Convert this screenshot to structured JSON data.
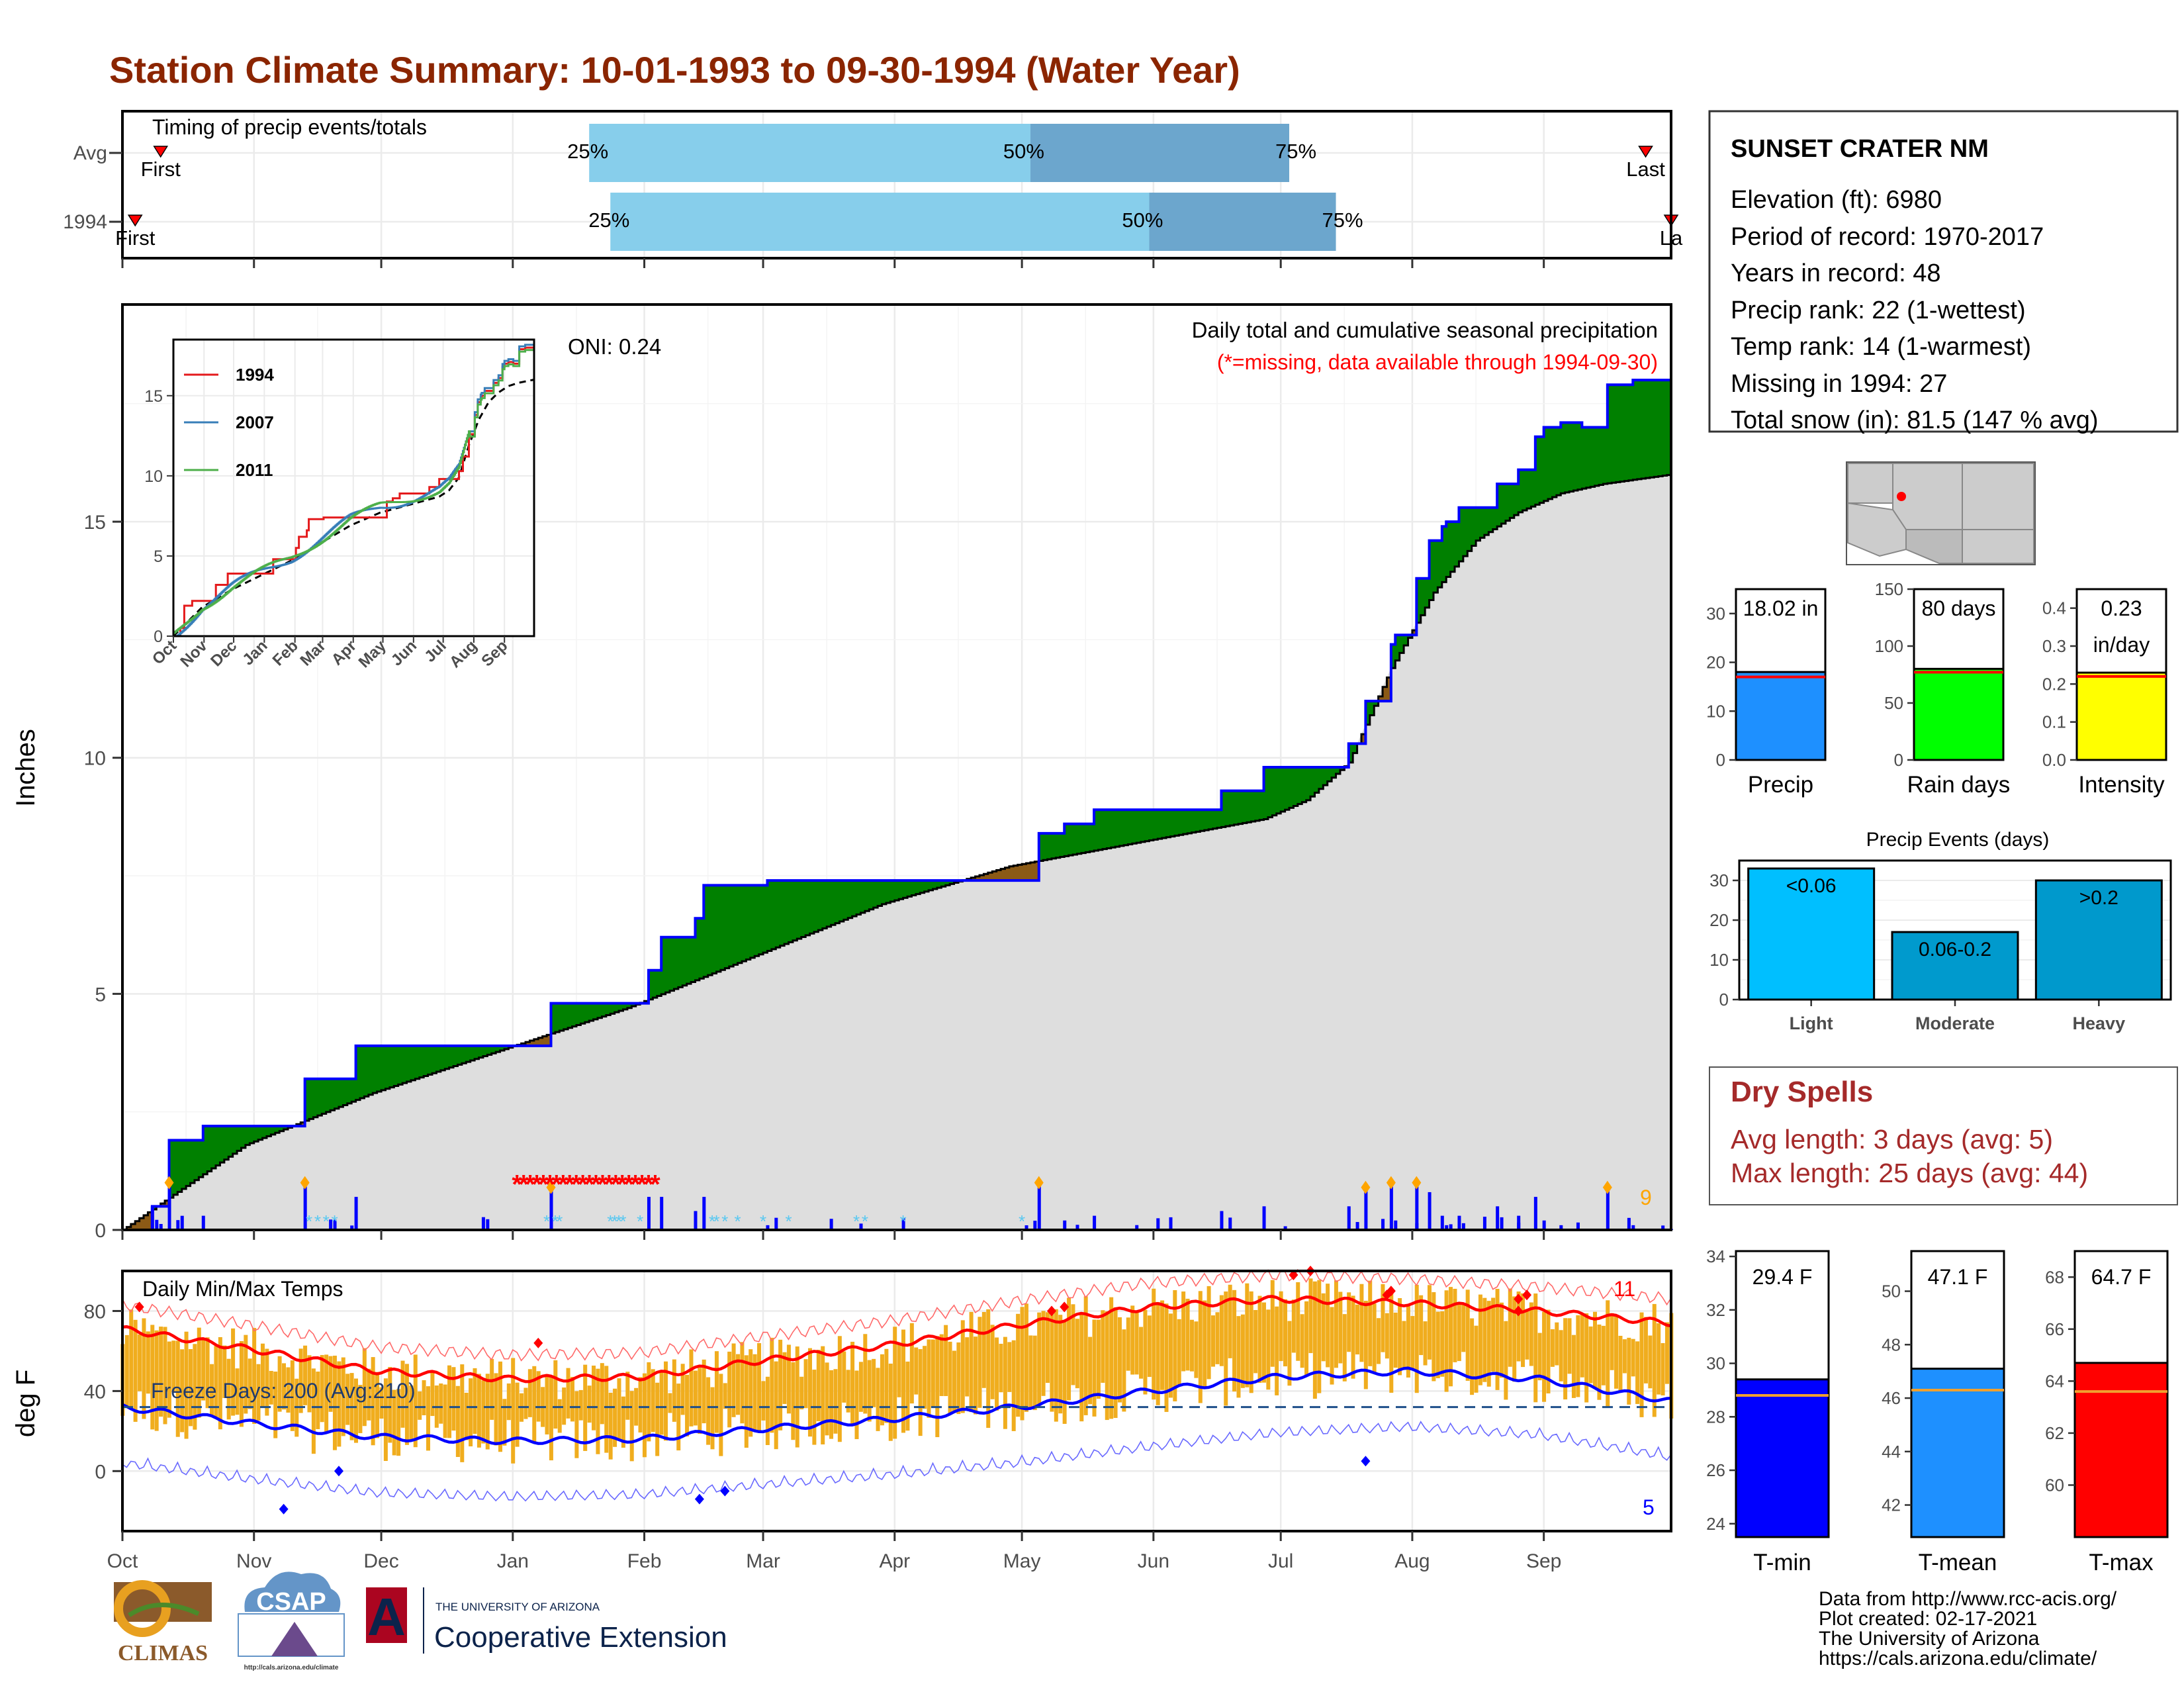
{
  "title": "Station Climate Summary: 10-01-1993 to 09-30-1994 (Water Year)",
  "colors": {
    "title": "#8b2500",
    "green": "#008000",
    "brown": "#8b5a16",
    "grey_fill": "#dedede",
    "blue": "#0000ff",
    "light_blue": "#87ceeb",
    "mid_blue": "#6ca6cd",
    "orange_bar": "#f0ad1e",
    "red": "#ff0000",
    "dry_red": "#a52a2a",
    "precip_light": "#00bfff",
    "precip_moderate": "#009acd",
    "precip_heavy": "#0099cc"
  },
  "timing": {
    "title": "Timing of precip events/totals",
    "rows": [
      {
        "label": "Avg",
        "first": "First",
        "last": "Last",
        "q25": "25%",
        "q50": "50%",
        "q75": "75%",
        "d_first": 10,
        "d_last": 360,
        "d25": 111,
        "d50": 215,
        "d75": 276
      },
      {
        "label": "1994",
        "first": "First",
        "last": "La",
        "q25": "25%",
        "q50": "50%",
        "q75": "75%",
        "d_first": 4,
        "d_last": 366,
        "d25": 116,
        "d50": 243,
        "d75": 287
      }
    ]
  },
  "precip_chart": {
    "ylabel": "Inches",
    "title": "Daily total and cumulative seasonal precipitation",
    "missing_note": "(*=missing, data available through 1994-09-30)",
    "oni": "ONI: 0.24",
    "big_count": "9",
    "yticks": [
      "0",
      "5",
      "10",
      "15"
    ],
    "ylim": [
      0,
      19.6
    ],
    "months": [
      "Oct",
      "Nov",
      "Dec",
      "Jan",
      "Feb",
      "Mar",
      "Apr",
      "May",
      "Jun",
      "Jul",
      "Aug",
      "Sep"
    ]
  },
  "inset": {
    "yticks": [
      "0",
      "5",
      "10",
      "15"
    ],
    "months": [
      "Oct",
      "Nov",
      "Dec",
      "Jan",
      "Feb",
      "Mar",
      "Apr",
      "May",
      "Jun",
      "Jul",
      "Aug",
      "Sep"
    ],
    "legend": [
      "1994",
      "2007",
      "2011"
    ],
    "legend_colors": [
      "#e41a1c",
      "#377eb8",
      "#4daf4a"
    ]
  },
  "temp_chart": {
    "title": "Daily Min/Max Temps",
    "ylabel": "deg F",
    "freeze": "Freeze Days: 200 (Avg:210)",
    "count_hot": "11",
    "count_cold": "5",
    "yticks": [
      "0",
      "40",
      "80"
    ],
    "ylim": [
      -30,
      100
    ],
    "months": [
      "Oct",
      "Nov",
      "Dec",
      "Jan",
      "Feb",
      "Mar",
      "Apr",
      "May",
      "Jun",
      "Jul",
      "Aug",
      "Sep"
    ]
  },
  "station": {
    "name": "SUNSET CRATER NM",
    "lines": [
      "Elevation (ft): 6980",
      "Period of record: 1970-2017",
      "Years in record: 48",
      "Precip rank: 22 (1-wettest)",
      "Temp rank: 14 (1-warmest)",
      "Missing in 1994: 27",
      "Total snow (in): 81.5 (147 % avg)"
    ]
  },
  "mini_bars": [
    {
      "label": "Precip",
      "value_text": "18.02 in",
      "value": 18.02,
      "avg": 17.0,
      "ylim": [
        0,
        35
      ],
      "ticks": [
        "0",
        "10",
        "20",
        "30"
      ],
      "tickv": [
        0,
        10,
        20,
        30
      ],
      "color": "#1e90ff"
    },
    {
      "label": "Rain days",
      "value_text": "80 days",
      "value": 80,
      "avg": 77,
      "ylim": [
        0,
        150
      ],
      "ticks": [
        "0",
        "50",
        "100",
        "150"
      ],
      "tickv": [
        0,
        50,
        100,
        150
      ],
      "color": "#00ff00"
    },
    {
      "label": "Intensity",
      "value_text": "0.23",
      "value_text2": "in/day",
      "value": 0.23,
      "avg": 0.22,
      "ylim": [
        0,
        0.45
      ],
      "ticks": [
        "0.0",
        "0.1",
        "0.2",
        "0.3",
        "0.4"
      ],
      "tickv": [
        0,
        0.1,
        0.2,
        0.3,
        0.4
      ],
      "color": "#ffff00"
    }
  ],
  "precip_events": {
    "title": "Precip Events (days)",
    "categories": [
      "Light",
      "Moderate",
      "Heavy"
    ],
    "bar_labels": [
      "<0.06",
      "0.06-0.2",
      ">0.2"
    ],
    "values": [
      33,
      17,
      30
    ],
    "yticks": [
      "0",
      "10",
      "20",
      "30"
    ],
    "ylim": [
      0,
      35
    ]
  },
  "dry_spells": {
    "title": "Dry Spells",
    "avg": "Avg length: 3 days (avg: 5)",
    "max": "Max length: 25 days (avg: 44)"
  },
  "temp_bars": [
    {
      "label": "T-min",
      "value_text": "29.4 F",
      "value": 29.4,
      "avg": 28.8,
      "ylim": [
        23.5,
        34.2
      ],
      "ticks": [
        "24",
        "26",
        "28",
        "30",
        "32",
        "34"
      ],
      "tickv": [
        24,
        26,
        28,
        30,
        32,
        34
      ],
      "color": "#0000ff"
    },
    {
      "label": "T-mean",
      "value_text": "47.1 F",
      "value": 47.1,
      "avg": 46.3,
      "ylim": [
        40.8,
        51.5
      ],
      "ticks": [
        "42",
        "44",
        "46",
        "48",
        "50"
      ],
      "tickv": [
        42,
        44,
        46,
        48,
        50
      ],
      "color": "#1e90ff"
    },
    {
      "label": "T-max",
      "value_text": "64.7 F",
      "value": 64.7,
      "avg": 63.6,
      "ylim": [
        58.0,
        69.0
      ],
      "ticks": [
        "60",
        "62",
        "64",
        "66",
        "68"
      ],
      "tickv": [
        60,
        62,
        64,
        66,
        68
      ],
      "color": "#ff0000"
    }
  ],
  "footer": {
    "credits": [
      "Data from http://www.rcc-acis.org/",
      "Plot created: 02-17-2021",
      "The University of Arizona",
      "https://cals.arizona.edu/climate/"
    ],
    "climas": "CLIMAS",
    "csap": "CSAP",
    "csap_url": "http://cals.arizona.edu/climate",
    "ua_small": "THE UNIVERSITY OF ARIZONA",
    "coop": "Cooperative Extension"
  },
  "chart_data": [
    {
      "type": "area",
      "title": "Daily total and cumulative seasonal precipitation",
      "ylabel": "Inches",
      "x_unit": "day of water year (1 = Oct 1, 1993)",
      "ylim": [
        0,
        19.6
      ],
      "series": [
        {
          "name": "cumulative precip 1994",
          "x": [
            1,
            8,
            12,
            20,
            44,
            56,
            77,
            88,
            102,
            125,
            128,
            136,
            138,
            153,
            163,
            176,
            205,
            217,
            223,
            230,
            260,
            270,
            280,
            290,
            294,
            300,
            301,
            306,
            309,
            312,
            313,
            316,
            325,
            330,
            334,
            336,
            340,
            345,
            351,
            357,
            366
          ],
          "y": [
            0,
            0.5,
            1.9,
            2.2,
            3.2,
            3.9,
            3.9,
            3.9,
            4.8,
            5.5,
            6.2,
            6.6,
            7.3,
            7.4,
            7.4,
            7.4,
            7.4,
            8.4,
            8.6,
            8.9,
            9.3,
            9.8,
            9.8,
            10.3,
            11.2,
            12.4,
            12.6,
            13.8,
            14.6,
            14.9,
            15.0,
            15.3,
            15.8,
            16.1,
            16.8,
            17.0,
            17.1,
            17.0,
            17.9,
            18.0,
            18.02
          ]
        },
        {
          "name": "cumulative precip average",
          "x": [
            1,
            30,
            60,
            90,
            120,
            150,
            180,
            210,
            240,
            270,
            280,
            290,
            300,
            310,
            320,
            330,
            340,
            350,
            366
          ],
          "y": [
            0,
            1.8,
            2.9,
            3.8,
            4.7,
            5.8,
            6.9,
            7.7,
            8.2,
            8.7,
            9.1,
            9.9,
            11.9,
            13.5,
            14.6,
            15.2,
            15.6,
            15.8,
            16.0
          ]
        }
      ]
    },
    {
      "type": "line",
      "title": "Daily Min/Max Temps",
      "ylabel": "deg F",
      "x_unit": "day of water year",
      "ylim": [
        -30,
        100
      ],
      "series": [
        {
          "name": "avg max",
          "x": [
            1,
            31,
            61,
            92,
            123,
            151,
            182,
            212,
            243,
            273,
            304,
            335,
            366
          ],
          "y": [
            71,
            61,
            50,
            46,
            47,
            55,
            63,
            73,
            82,
            86,
            84,
            80,
            74
          ]
        },
        {
          "name": "avg min",
          "x": [
            1,
            31,
            61,
            92,
            123,
            151,
            182,
            212,
            243,
            273,
            304,
            335,
            366
          ],
          "y": [
            32,
            24,
            17,
            15,
            16,
            21,
            26,
            32,
            40,
            47,
            50,
            46,
            35
          ]
        }
      ]
    },
    {
      "type": "bar",
      "title": "Precip Events (days)",
      "categories": [
        "Light",
        "Moderate",
        "Heavy"
      ],
      "values": [
        33,
        17,
        30
      ]
    }
  ]
}
